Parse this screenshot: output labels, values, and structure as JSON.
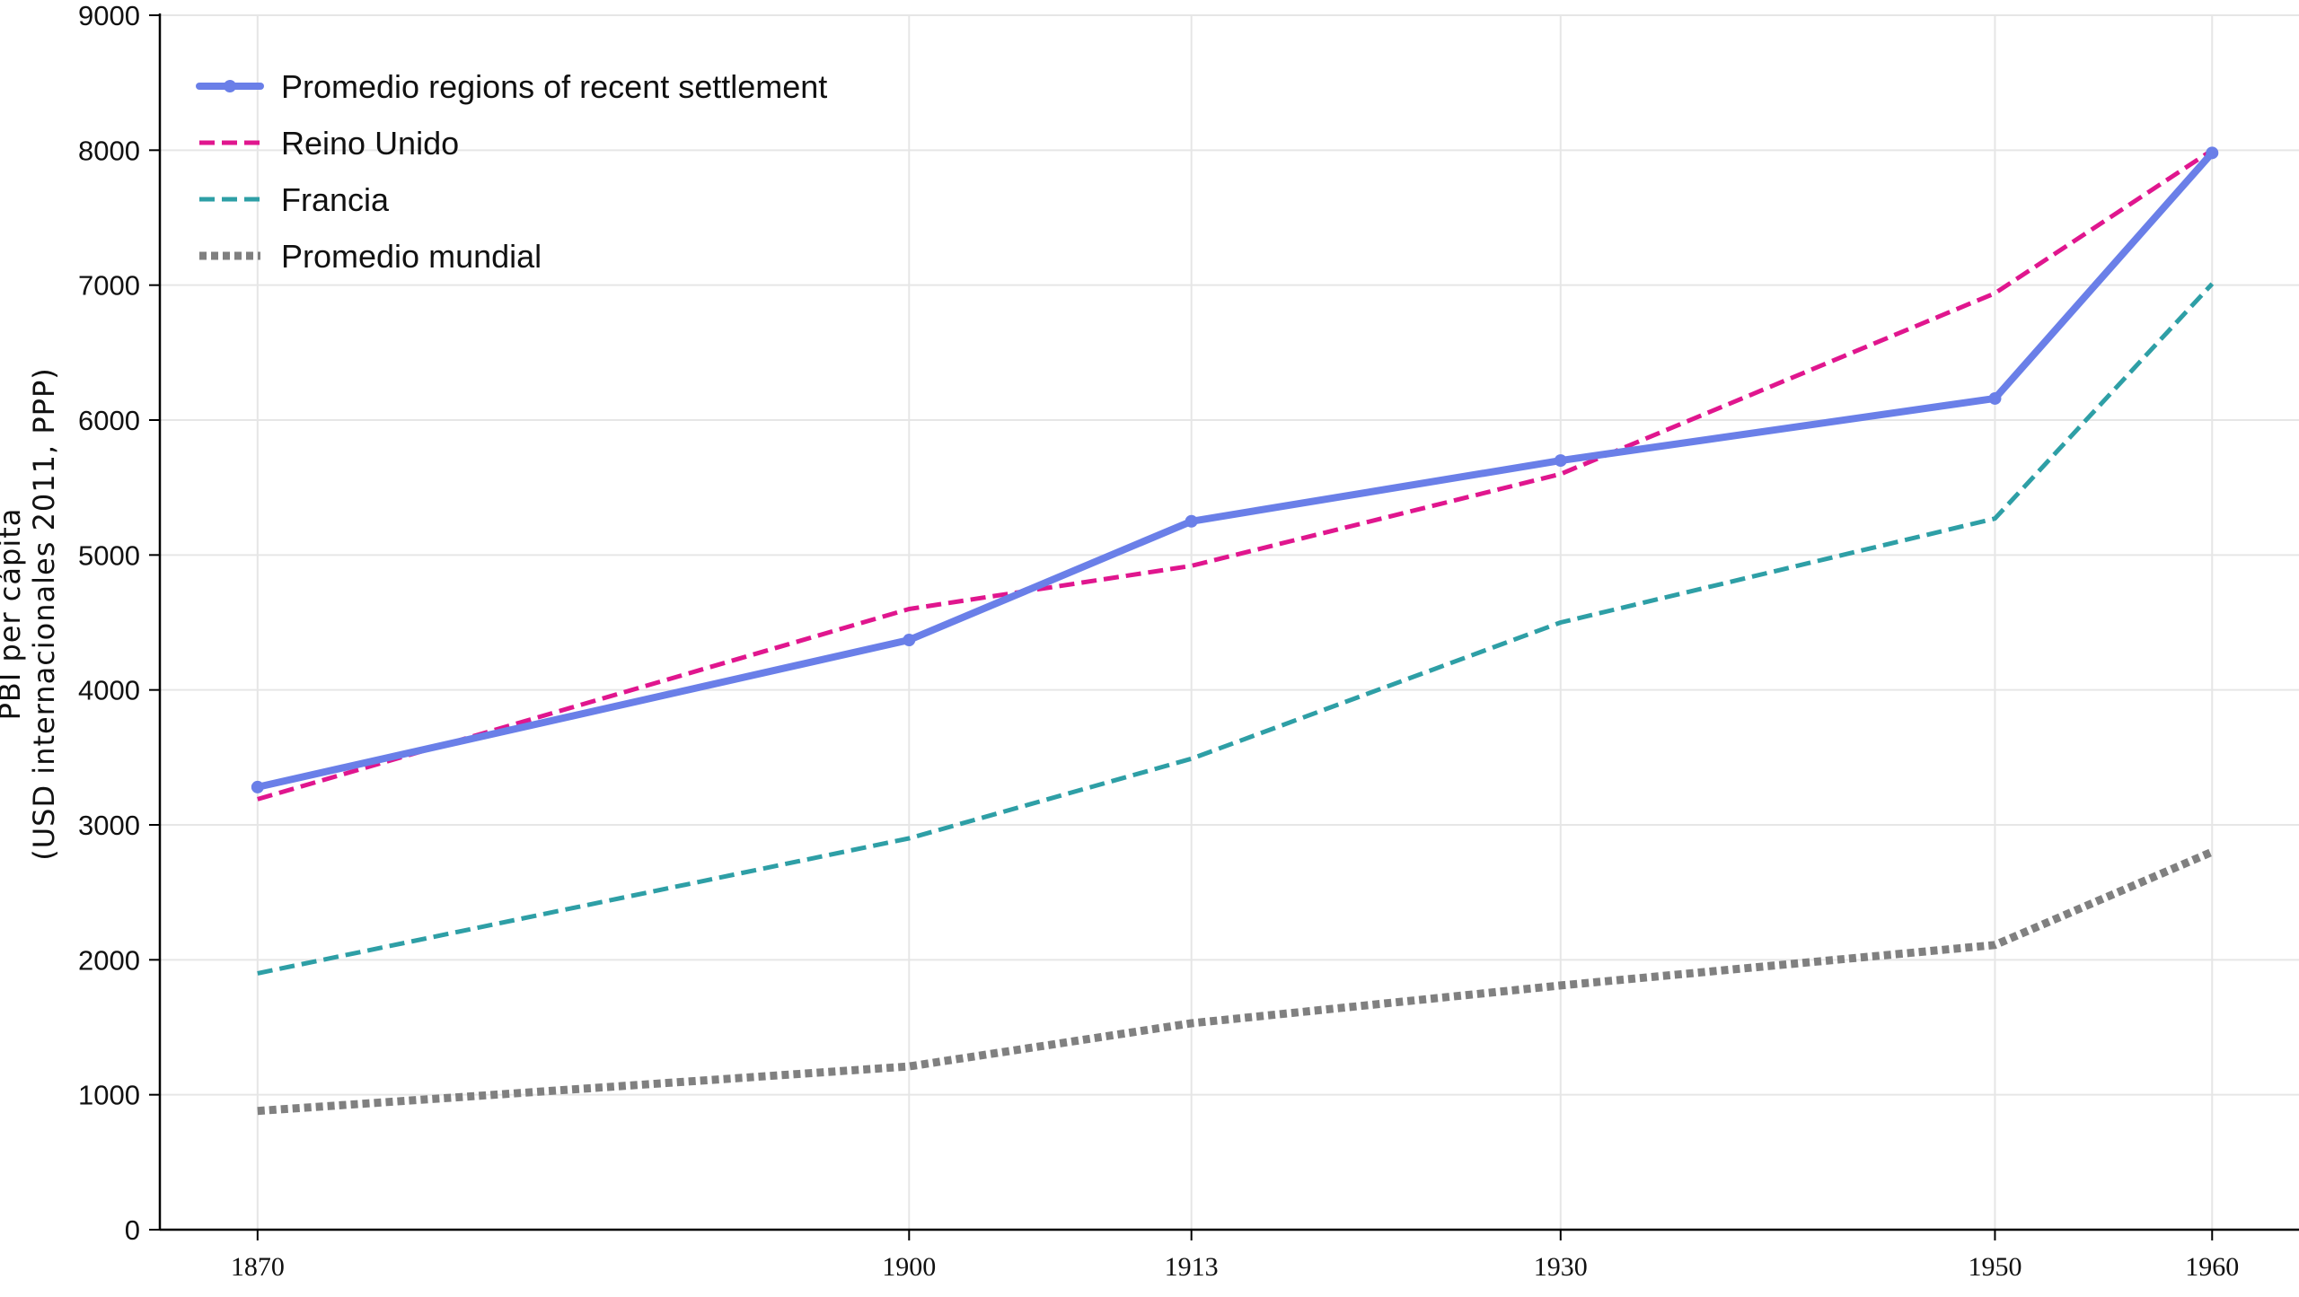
{
  "chart_data": {
    "type": "line",
    "title": "",
    "xlabel": "",
    "ylabel_lines": [
      "PBI per cápita",
      "(USD internacionales 2011, PPP)"
    ],
    "x": [
      1870,
      1900,
      1913,
      1930,
      1950,
      1960
    ],
    "x_tick_labels": [
      "1870",
      "1900",
      "1913",
      "1930",
      "1950",
      "1960"
    ],
    "xlim": [
      1865.5,
      1964
    ],
    "ylim": [
      0,
      9000
    ],
    "y_ticks": [
      0,
      1000,
      2000,
      3000,
      4000,
      5000,
      6000,
      7000,
      8000,
      9000
    ],
    "grid": true,
    "legend_position": "top-left",
    "series": [
      {
        "name": "Promedio regions of recent settlement",
        "values": [
          3280,
          4370,
          5250,
          5700,
          6160,
          7980
        ],
        "color": "#6a7fe8",
        "style": "solid-markers"
      },
      {
        "name": "Reino Unido",
        "values": [
          3190,
          4600,
          4920,
          5600,
          6940,
          8000
        ],
        "color": "#e0168e",
        "style": "dashed"
      },
      {
        "name": "Francia",
        "values": [
          1900,
          2900,
          3490,
          4500,
          5270,
          7010
        ],
        "color": "#2e9fa6",
        "style": "dashed"
      },
      {
        "name": "Promedio mundial",
        "values": [
          880,
          1210,
          1530,
          1810,
          2110,
          2800
        ],
        "color": "#808080",
        "style": "dotted"
      }
    ]
  }
}
